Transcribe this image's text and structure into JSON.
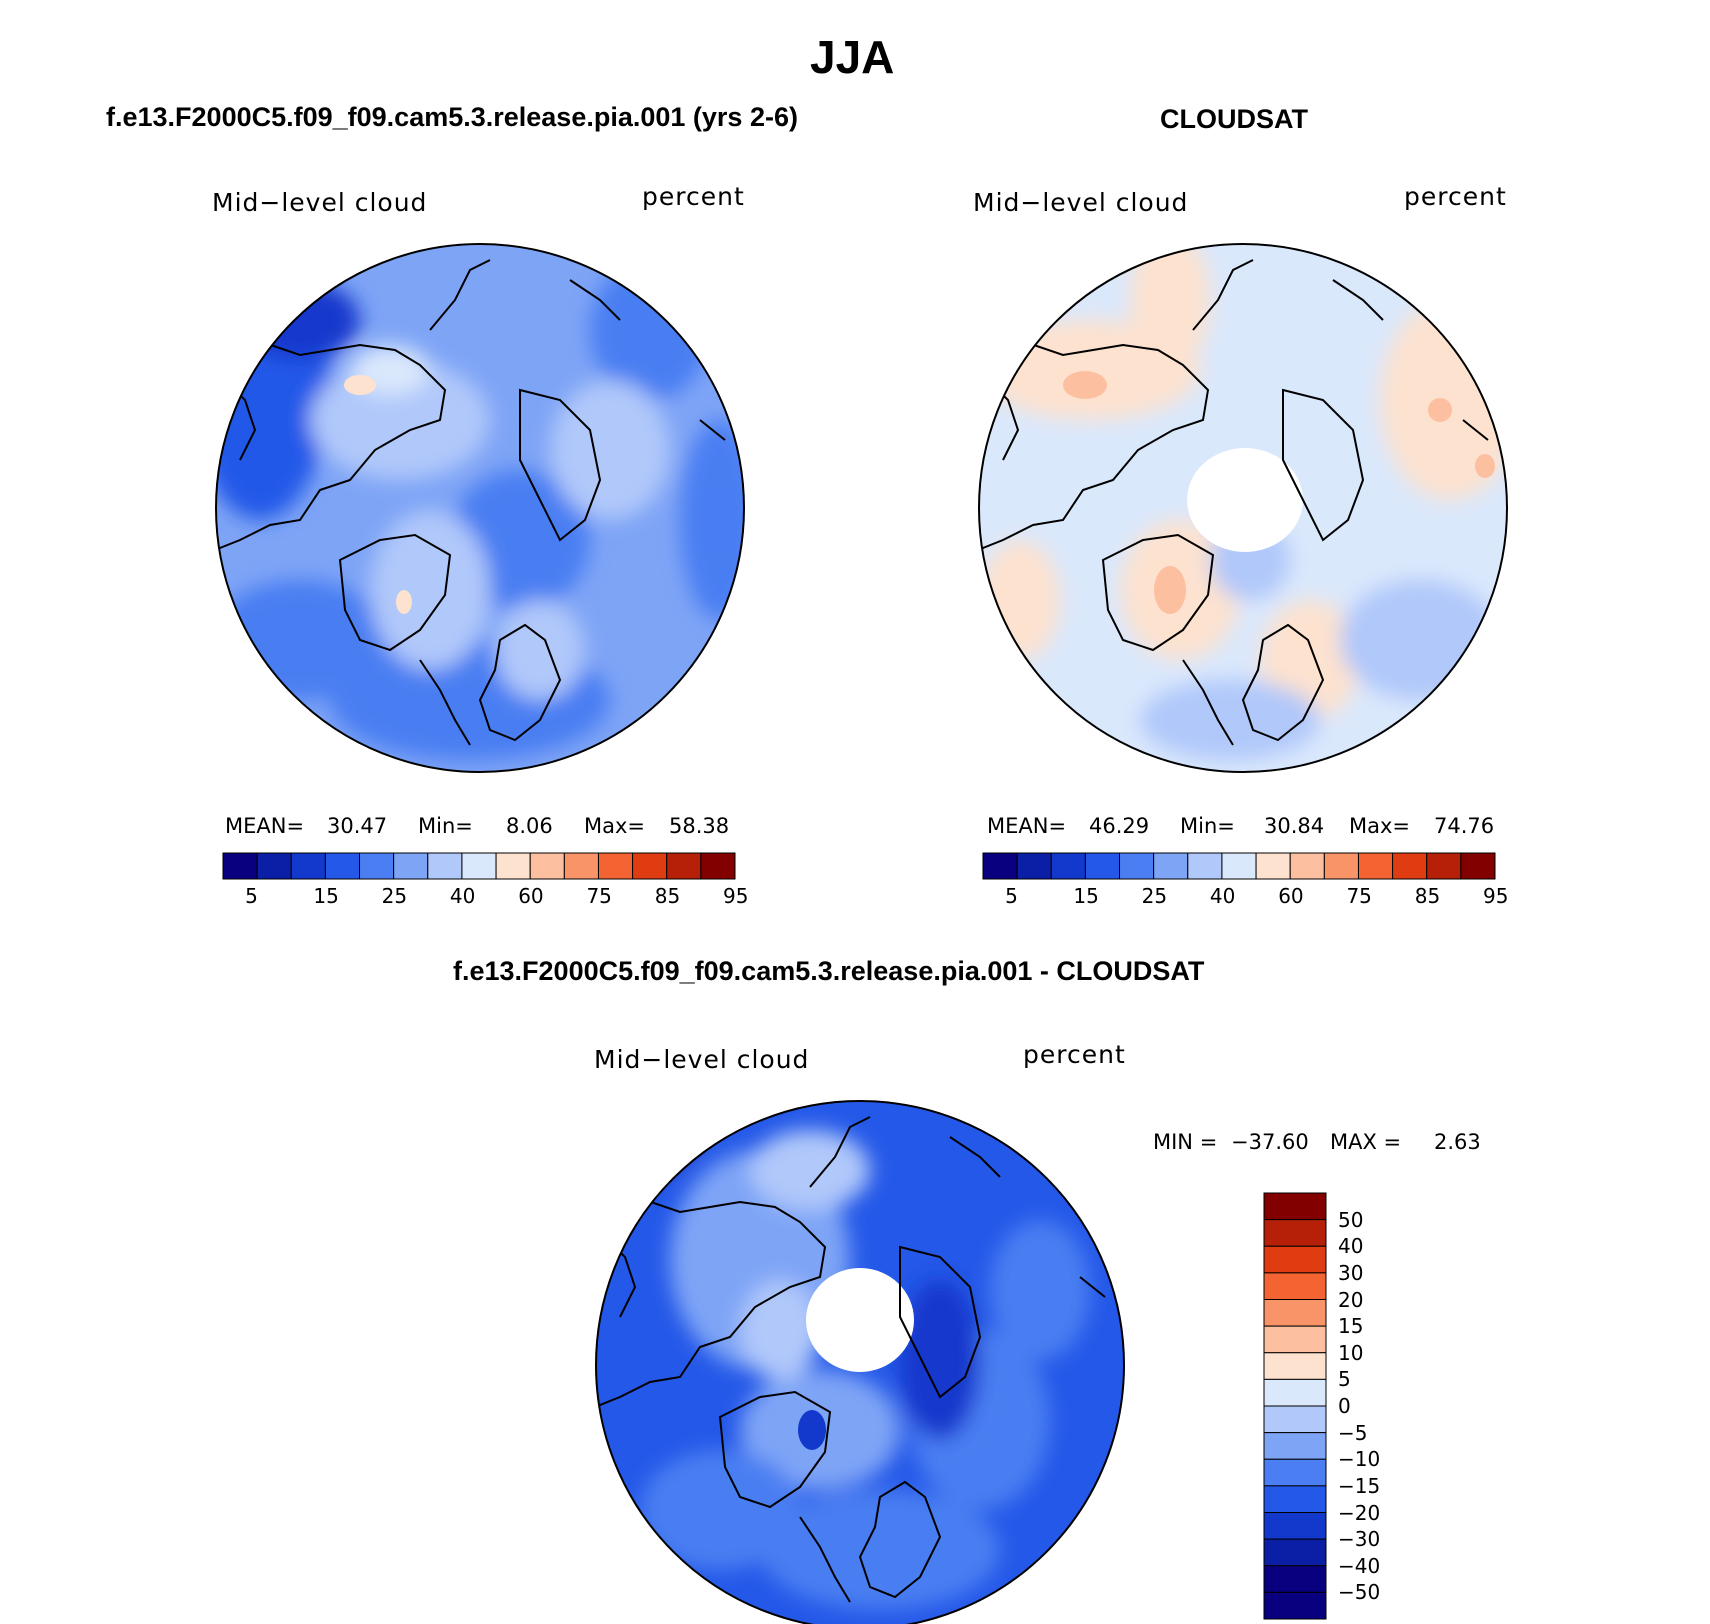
{
  "title": "JJA",
  "panels": [
    {
      "heading": "f.e13.F2000C5.f09_f09.cam5.3.release.pia.001 (yrs 2-6)",
      "left_label": "Mid−level cloud",
      "right_label": "percent",
      "stats": {
        "mean_label": "MEAN=",
        "mean": "30.47",
        "min_label": "Min=",
        "min": "8.06",
        "max_label": "Max=",
        "max": "58.38"
      },
      "colorbar_ticks": [
        "5",
        "15",
        "25",
        "40",
        "60",
        "75",
        "85",
        "95"
      ]
    },
    {
      "heading": "CLOUDSAT",
      "left_label": "Mid−level cloud",
      "right_label": "percent",
      "stats": {
        "mean_label": "MEAN=",
        "mean": "46.29",
        "min_label": "Min=",
        "min": "30.84",
        "max_label": "Max=",
        "max": "74.76"
      },
      "colorbar_ticks": [
        "5",
        "15",
        "25",
        "40",
        "60",
        "75",
        "85",
        "95"
      ]
    }
  ],
  "difference": {
    "heading": "f.e13.F2000C5.f09_f09.cam5.3.release.pia.001 - CLOUDSAT",
    "left_label": "Mid−level cloud",
    "right_label": "percent",
    "minmax": {
      "min_label": "MIN =",
      "min": "−37.60",
      "max_label": "MAX =",
      "max": "2.63"
    },
    "colorbar_ticks": [
      "50",
      "40",
      "30",
      "20",
      "15",
      "10",
      "5",
      "0",
      "−5",
      "−10",
      "−15",
      "−20",
      "−30",
      "−40",
      "−50"
    ]
  },
  "colors": {
    "abs_palette": [
      "#08007f",
      "#0a1fa5",
      "#1238cc",
      "#2458e8",
      "#4a7ef2",
      "#7ea4f6",
      "#b0c8fa",
      "#dae8fc",
      "#fde2cf",
      "#fcc0a0",
      "#f99468",
      "#f46432",
      "#e03c12",
      "#b62008",
      "#820000"
    ],
    "diff_palette": [
      "#08007f",
      "#0a1fa5",
      "#1238cc",
      "#2458e8",
      "#4a7ef2",
      "#7ea4f6",
      "#b0c8fa",
      "#dae8fc",
      "#fde2cf",
      "#fcc0a0",
      "#f99468",
      "#f46432",
      "#e03c12",
      "#b62008",
      "#820000",
      "#6e0000"
    ]
  }
}
